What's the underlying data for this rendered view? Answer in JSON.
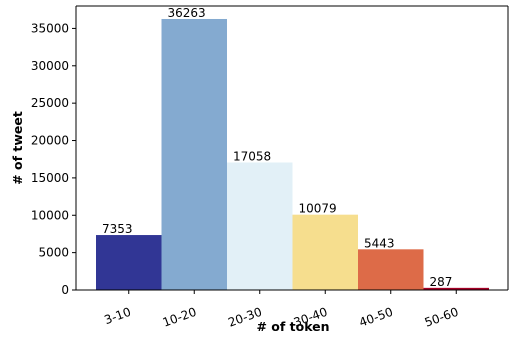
{
  "chart_data": {
    "type": "bar",
    "title": "",
    "xlabel": "# of token",
    "ylabel": "# of tweet",
    "categories": [
      "3-10",
      "10-20",
      "20-30",
      "30-40",
      "40-50",
      "50-60"
    ],
    "values": [
      7353,
      36263,
      17058,
      10079,
      5443,
      287
    ],
    "data_labels": [
      "7353",
      "36263",
      "17058",
      "10079",
      "5443",
      "287"
    ],
    "colors": [
      "#313695",
      "#84aad0",
      "#e2f0f7",
      "#f6de8e",
      "#dd6b48",
      "#a50026"
    ],
    "ylim": [
      0,
      38000
    ],
    "yticks": [
      0,
      5000,
      10000,
      15000,
      20000,
      25000,
      30000,
      35000
    ],
    "ytick_labels": [
      "0",
      "5000",
      "10000",
      "15000",
      "20000",
      "25000",
      "30000",
      "35000"
    ],
    "grid": false,
    "legend": "none"
  }
}
